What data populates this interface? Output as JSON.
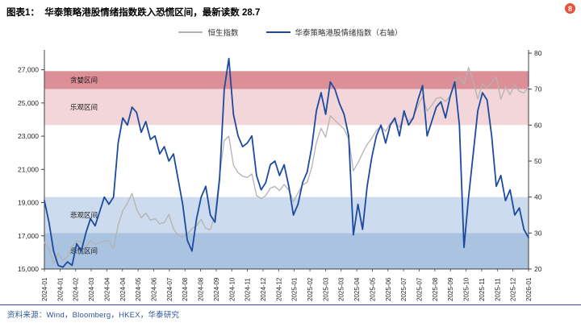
{
  "page": {
    "title": "图表1：  华泰策略港股情绪指数跌入恐慌区间，最新读数 28.7",
    "source": "资料来源：Wind，Bloomberg，HKEX，华泰研究",
    "badge": "8",
    "badge_color": "#e8503a",
    "accent_color": "#2f5496"
  },
  "chart_data": {
    "type": "line",
    "title": "华泰策略港股情绪指数跌入恐慌区间，最新读数 28.7",
    "latest_reading": 28.7,
    "grid": false,
    "legend_position": "top-center",
    "x_labels": [
      "2024-01",
      "2024-01",
      "2024-02",
      "2024-03",
      "2024-04",
      "2024-04",
      "2024-05",
      "2024-06",
      "2024-07",
      "2024-08",
      "2024-08",
      "2024-09",
      "2024-10",
      "2024-11",
      "2024-12",
      "2024-12",
      "2025-01",
      "2025-02",
      "2025-03",
      "2025-03",
      "2025-04",
      "2025-05",
      "2025-06",
      "2025-07",
      "2025-07",
      "2025-08",
      "2025-09",
      "2025-10",
      "2025-11",
      "2025-11",
      "2025-12",
      "2026-01"
    ],
    "left_axis": {
      "min": 15000,
      "max": 28000,
      "ticks": [
        15000,
        17000,
        19000,
        21000,
        23000,
        25000,
        27000
      ]
    },
    "right_axis": {
      "min": 20,
      "max": 80,
      "ticks": [
        20,
        30,
        40,
        50,
        60,
        70,
        80
      ]
    },
    "bands": [
      {
        "key": "greed",
        "label": "贪婪区间",
        "from": 70,
        "to": 75,
        "color": "#dd8f97"
      },
      {
        "key": "optimism",
        "label": "乐观区间",
        "from": 60,
        "to": 70,
        "color": "#f3d6d9"
      },
      {
        "key": "pessimism",
        "label": "悲观区间",
        "from": 30,
        "to": 40,
        "color": "#ccdbed"
      },
      {
        "key": "panic",
        "label": "恐慌区间",
        "from": 20,
        "to": 30,
        "color": "#a9c3e0"
      }
    ],
    "series": [
      {
        "name": "恒生指数",
        "axis": "left",
        "color": "#b3b3b3",
        "width": 1.3,
        "values": [
          16600,
          16200,
          15300,
          15950,
          15500,
          15750,
          16350,
          16700,
          16600,
          16350,
          16700,
          16500,
          16550,
          16700,
          16700,
          16200,
          17650,
          18500,
          18960,
          19550,
          18600,
          18080,
          18370,
          17940,
          18030,
          17720,
          17800,
          18290,
          17420,
          17020,
          16950,
          17090,
          17430,
          17610,
          17990,
          17440,
          17370,
          18260,
          20630,
          22740,
          23000,
          21250,
          20800,
          20590,
          20510,
          20730,
          19430,
          19230,
          19420,
          19870,
          19970,
          19720,
          20090,
          19760,
          19060,
          19580,
          20070,
          20225,
          21130,
          22620,
          23480,
          22940,
          24230,
          23960,
          23690,
          23430,
          22850,
          20915,
          21395,
          21980,
          22505,
          22870,
          23345,
          23600,
          23290,
          23790,
          23890,
          23530,
          24280,
          23920,
          24140,
          24825,
          25390,
          24510,
          24860,
          25270,
          25340,
          25080,
          25420,
          26390,
          26545,
          26130,
          27140,
          26290,
          25250,
          26160,
          25910,
          26240,
          26570,
          25220,
          25990,
          25500,
          26100,
          25700,
          25600,
          25950
        ]
      },
      {
        "name": "华泰策略港股情绪指数（右轴）",
        "axis": "right",
        "color": "#1b4a9e",
        "width": 1.8,
        "values": [
          39,
          33,
          25,
          21,
          20.5,
          22,
          21,
          27,
          25,
          30,
          34,
          32,
          36,
          40,
          38,
          40,
          55,
          62,
          60,
          65,
          63.5,
          58,
          61,
          56,
          57,
          52,
          54,
          50,
          52,
          45,
          38,
          28,
          25,
          34,
          40,
          43,
          35,
          33,
          45,
          70,
          78.5,
          63,
          57,
          54,
          55,
          57,
          46,
          42,
          44,
          49,
          50,
          46,
          49,
          43,
          35,
          38,
          44,
          47,
          54,
          64,
          69,
          63,
          72,
          70,
          66,
          63,
          57,
          29.5,
          38,
          31,
          43,
          51,
          57,
          60,
          55,
          60,
          62,
          57,
          64,
          60,
          62,
          67,
          71,
          57,
          61,
          65,
          66.5,
          62,
          68,
          72,
          60,
          26,
          40,
          52,
          64,
          69,
          67,
          57,
          43,
          46,
          39,
          42,
          35,
          37,
          31,
          28.7
        ]
      }
    ]
  }
}
